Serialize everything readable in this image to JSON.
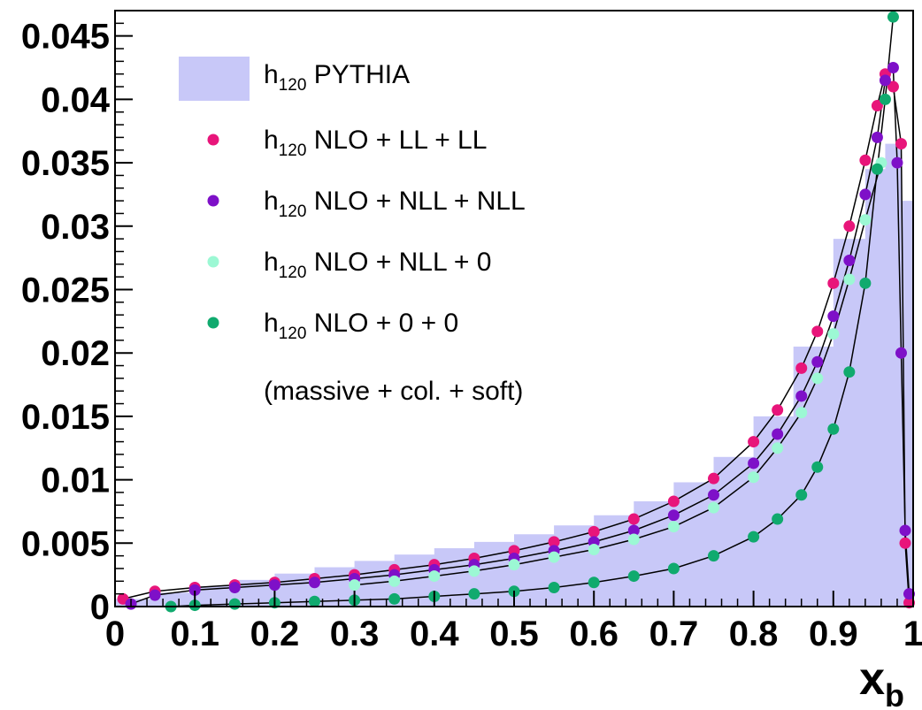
{
  "chart_data": {
    "type": "scatter",
    "xlabel_main": "x",
    "xlabel_sub": "b",
    "xlim": [
      0,
      1
    ],
    "ylim": [
      0,
      0.047
    ],
    "x_ticks": [
      0,
      0.1,
      0.2,
      0.3,
      0.4,
      0.5,
      0.6,
      0.7,
      0.8,
      0.9,
      1
    ],
    "x_tick_labels": [
      "0",
      "0.1",
      "0.2",
      "0.3",
      "0.4",
      "0.5",
      "0.6",
      "0.7",
      "0.8",
      "0.9",
      "1"
    ],
    "y_ticks": [
      0,
      0.005,
      0.01,
      0.015,
      0.02,
      0.025,
      0.03,
      0.035,
      0.04,
      0.045
    ],
    "y_tick_labels": [
      "0",
      "0.005",
      "0.01",
      "0.015",
      "0.02",
      "0.025",
      "0.03",
      "0.035",
      "0.04",
      "0.045"
    ],
    "grid": false,
    "legend_position": "top-left",
    "legend_note": "(massive + col. + soft)",
    "histogram": {
      "label_pre": "h",
      "label_sub": "120",
      "label_post": " PYTHIA",
      "color": "#c8c8f8",
      "x": [
        0.025,
        0.075,
        0.125,
        0.175,
        0.225,
        0.275,
        0.325,
        0.375,
        0.425,
        0.475,
        0.525,
        0.575,
        0.625,
        0.675,
        0.725,
        0.775,
        0.825,
        0.875,
        0.925,
        0.955,
        0.975,
        0.995
      ],
      "y": [
        0.0006,
        0.0011,
        0.0016,
        0.0021,
        0.0026,
        0.0031,
        0.0036,
        0.0041,
        0.0046,
        0.0051,
        0.0057,
        0.0064,
        0.0072,
        0.0083,
        0.0098,
        0.0118,
        0.015,
        0.0205,
        0.029,
        0.0345,
        0.0365,
        0.032
      ]
    },
    "series": [
      {
        "label_pre": "h",
        "label_sub": "120",
        "label_post": " NLO +   LL +  LL",
        "color": "#e8157a",
        "x": [
          0.01,
          0.05,
          0.1,
          0.15,
          0.2,
          0.25,
          0.3,
          0.35,
          0.4,
          0.45,
          0.5,
          0.55,
          0.6,
          0.65,
          0.7,
          0.75,
          0.8,
          0.83,
          0.86,
          0.88,
          0.9,
          0.92,
          0.94,
          0.955,
          0.965,
          0.975,
          0.985,
          0.99,
          0.995
        ],
        "y": [
          0.0006,
          0.0012,
          0.0015,
          0.0017,
          0.0019,
          0.0022,
          0.0025,
          0.0029,
          0.0033,
          0.0038,
          0.0044,
          0.0051,
          0.0059,
          0.0069,
          0.0083,
          0.0101,
          0.013,
          0.0155,
          0.0188,
          0.0217,
          0.0255,
          0.03,
          0.0352,
          0.0395,
          0.042,
          0.041,
          0.0365,
          0.005,
          0.0003
        ]
      },
      {
        "label_pre": "h",
        "label_sub": "120",
        "label_post": " NLO + NLL + NLL",
        "color": "#7e10c8",
        "x": [
          0.02,
          0.05,
          0.1,
          0.15,
          0.2,
          0.25,
          0.3,
          0.35,
          0.4,
          0.45,
          0.5,
          0.55,
          0.6,
          0.65,
          0.7,
          0.75,
          0.8,
          0.83,
          0.86,
          0.88,
          0.9,
          0.92,
          0.94,
          0.955,
          0.965,
          0.975,
          0.98,
          0.985,
          0.99,
          0.995
        ],
        "y": [
          0.0002,
          0.0009,
          0.0013,
          0.0015,
          0.0017,
          0.0019,
          0.0022,
          0.0025,
          0.0029,
          0.0033,
          0.0038,
          0.0044,
          0.0051,
          0.006,
          0.0072,
          0.0088,
          0.0113,
          0.0136,
          0.0166,
          0.0193,
          0.0229,
          0.0273,
          0.0325,
          0.037,
          0.0415,
          0.0425,
          0.035,
          0.02,
          0.006,
          0.001
        ]
      },
      {
        "label_pre": "h",
        "label_sub": "120",
        "label_post": " NLO + NLL +   0",
        "color": "#9cf8d4",
        "x": [
          0.3,
          0.35,
          0.4,
          0.45,
          0.5,
          0.55,
          0.6,
          0.65,
          0.7,
          0.75,
          0.8,
          0.83,
          0.86,
          0.88,
          0.9,
          0.92,
          0.94,
          0.96
        ],
        "y": [
          0.0017,
          0.002,
          0.0024,
          0.0028,
          0.0033,
          0.0039,
          0.0045,
          0.0053,
          0.0063,
          0.0078,
          0.0102,
          0.0125,
          0.0153,
          0.018,
          0.0215,
          0.0258,
          0.0305,
          0.035
        ]
      },
      {
        "label_pre": "h",
        "label_sub": "120",
        "label_post": " NLO +    0 +   0",
        "color": "#10aa6e",
        "x": [
          0.07,
          0.1,
          0.15,
          0.2,
          0.25,
          0.3,
          0.35,
          0.4,
          0.45,
          0.5,
          0.55,
          0.6,
          0.65,
          0.7,
          0.75,
          0.8,
          0.83,
          0.86,
          0.88,
          0.9,
          0.92,
          0.94,
          0.955,
          0.965,
          0.975
        ],
        "y": [
          0.0,
          0.0001,
          0.0002,
          0.0003,
          0.0004,
          0.0005,
          0.0006,
          0.0008,
          0.001,
          0.0012,
          0.0015,
          0.0019,
          0.0024,
          0.003,
          0.004,
          0.0055,
          0.0069,
          0.0088,
          0.011,
          0.014,
          0.0185,
          0.0255,
          0.0345,
          0.04,
          0.0465
        ]
      }
    ]
  }
}
